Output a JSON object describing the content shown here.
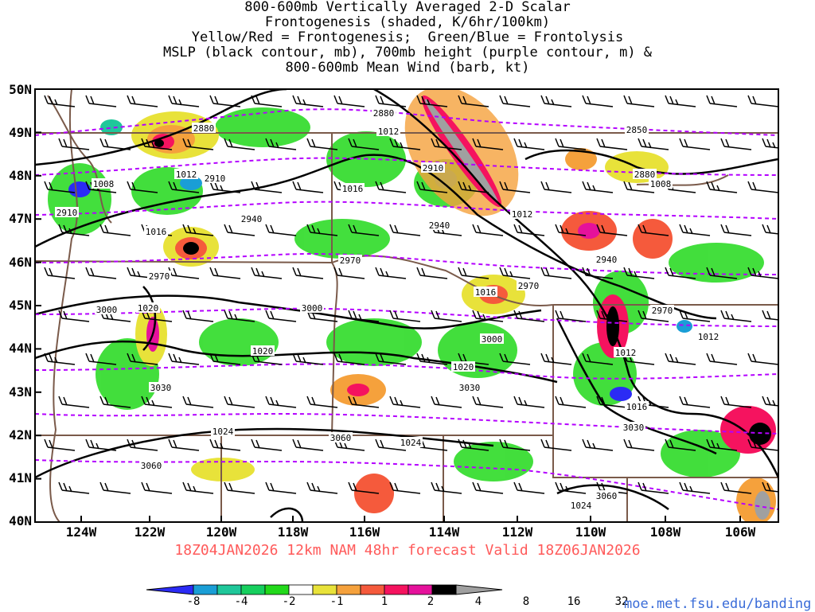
{
  "title": {
    "line1": "800-600mb Vertically Averaged 2-D Scalar",
    "line2": "Frontogenesis (shaded, K/6hr/100km)",
    "line3": "Yellow/Red = Frontogenesis;  Green/Blue = Frontolysis",
    "line4": "MSLP (black contour, mb), 700mb height (purple contour, m) &",
    "line5": "800-600mb Mean Wind (barb, kt)"
  },
  "valid_line": "18Z04JAN2026 12km NAM 48hr forecast Valid 18Z06JAN2026",
  "credit": "moe.met.fsu.edu/banding",
  "lat_labels": [
    "50N",
    "49N",
    "48N",
    "47N",
    "46N",
    "45N",
    "44N",
    "43N",
    "42N",
    "41N",
    "40N"
  ],
  "lon_labels": [
    "124W",
    "122W",
    "120W",
    "118W",
    "116W",
    "114W",
    "112W",
    "110W",
    "108W",
    "106W"
  ],
  "mslp_labels": [
    "1012",
    "1012",
    "1016",
    "1016",
    "1016",
    "1020",
    "1020",
    "1020",
    "1024",
    "1024",
    "1024",
    "1012",
    "1008",
    "1008",
    "1012",
    "1012",
    "1016"
  ],
  "height_labels": [
    "2880",
    "2880",
    "2850",
    "2880",
    "2910",
    "2910",
    "2910",
    "2940",
    "2940",
    "2940",
    "2970",
    "2970",
    "2970",
    "2970",
    "3000",
    "3000",
    "3000",
    "3030",
    "3030",
    "3030",
    "3060",
    "3060",
    "3060"
  ],
  "colorbar": {
    "labels": [
      "-8",
      "-4",
      "-2",
      "-1",
      "1",
      "2",
      "4",
      "8",
      "16",
      "32"
    ],
    "colors": [
      "#2b2bf5",
      "#1a9ed6",
      "#1fc79a",
      "#16cf5e",
      "#22d91b",
      "#ffffff",
      "#e8e23a",
      "#f5a13c",
      "#f55a3c",
      "#f5135f",
      "#e5119b",
      "#000000",
      "#a0a0a0"
    ]
  },
  "legend_colors": {
    "mslp": "#000000",
    "height": "#b400ff",
    "borders": "#7a5a4a",
    "barbs": "#000000"
  }
}
